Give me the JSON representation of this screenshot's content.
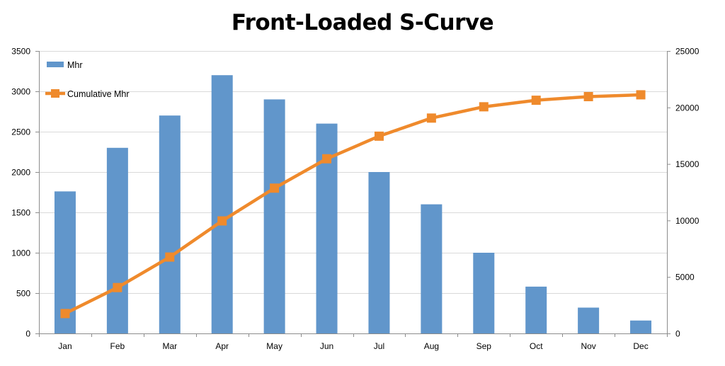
{
  "chart_data": {
    "type": "bar",
    "title": "Front-Loaded S-Curve",
    "categories": [
      "Jan",
      "Feb",
      "Mar",
      "Apr",
      "May",
      "Jun",
      "Jul",
      "Aug",
      "Sep",
      "Oct",
      "Nov",
      "Dec"
    ],
    "series": [
      {
        "name": "Mhr",
        "type": "bar",
        "axis": "left",
        "color": "#6196cb",
        "values": [
          1760,
          2300,
          2700,
          3200,
          2900,
          2600,
          2000,
          1600,
          1000,
          580,
          320,
          160
        ]
      },
      {
        "name": "Cumulative Mhr",
        "type": "line",
        "axis": "right",
        "color": "#ef8a2c",
        "marker": "square",
        "values": [
          1760,
          4060,
          6760,
          9960,
          12860,
          15460,
          17460,
          19060,
          20060,
          20640,
          20960,
          21120
        ]
      }
    ],
    "ylim": [
      0,
      3500
    ],
    "yticks": [
      0,
      500,
      1000,
      1500,
      2000,
      2500,
      3000,
      3500
    ],
    "y2lim": [
      0,
      25000
    ],
    "y2ticks": [
      0,
      5000,
      10000,
      15000,
      20000,
      25000
    ],
    "grid": true,
    "legend": "top-left"
  }
}
